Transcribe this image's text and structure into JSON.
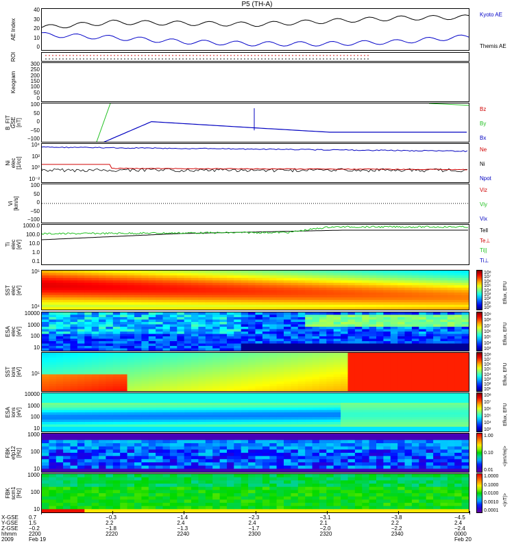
{
  "title": "P5 (TH-A)",
  "panels": {
    "ae": {
      "ylabel": "AE Index",
      "ticks": [
        "40",
        "30",
        "20",
        "10",
        "0"
      ],
      "legend": [
        "Kyoto AE",
        "Themis AE"
      ],
      "legend_colors": [
        "#0000c8",
        "#000000"
      ]
    },
    "roi": {
      "ylabel": "ROI"
    },
    "keogram": {
      "ylabel": "Keogram",
      "ticks": [
        "300",
        "250",
        "200",
        "150",
        "100",
        "50",
        "0"
      ]
    },
    "bfit": {
      "ylabel": "B_FIT\nGSE\n[nT]",
      "ticks": [
        "100",
        "50",
        "0",
        "−50",
        "−100"
      ],
      "legend": [
        "Bz",
        "By",
        "Bx"
      ],
      "legend_colors": [
        "#d00000",
        "#20c020",
        "#0000c0"
      ]
    },
    "ni": {
      "ylabel": "Ni\nelec\n[1/cc]",
      "ticks": [
        "10⁴",
        "10²",
        "10⁰",
        "10⁻²"
      ],
      "legend": [
        "Ne",
        "Ni",
        "Npot"
      ],
      "legend_colors": [
        "#d00000",
        "#000000",
        "#0000c0"
      ]
    },
    "vi": {
      "ylabel": "Vi\n[km/s]",
      "ticks": [
        "100",
        "50",
        "0",
        "−50",
        "−100"
      ],
      "legend": [
        "Viz",
        "Viy",
        "Vix"
      ],
      "legend_colors": [
        "#d00000",
        "#20c020",
        "#0000c0"
      ]
    },
    "ti": {
      "ylabel": "Ti\nelec\n[eV]",
      "ticks": [
        "1000.0",
        "100.0",
        "10.0",
        "1.0",
        "0.1"
      ],
      "legend": [
        "Tell",
        "Te⊥",
        "Ti||",
        "Ti⊥"
      ],
      "legend_colors": [
        "#000000",
        "#d00000",
        "#20c020",
        "#0000c0"
      ]
    },
    "sst_e": {
      "ylabel": "SST\nelec\n[eV]",
      "ticks": [
        "10⁵",
        "10⁴"
      ],
      "cb_label": "Eflux, EFU",
      "cb_ticks": [
        "10⁸",
        "10⁷",
        "10⁶",
        "10⁵",
        "10⁴",
        "10³",
        "10²",
        "10¹",
        "10⁰"
      ]
    },
    "esa_e": {
      "ylabel": "ESA\nelec\n[eV]",
      "ticks": [
        "10000",
        "1000",
        "100",
        "10"
      ],
      "cb_label": "Eflux, EFU",
      "cb_ticks": [
        "10⁹",
        "10⁸",
        "10⁷",
        "10⁶",
        "10⁵",
        "10⁴",
        "10³"
      ]
    },
    "sst_i": {
      "ylabel": "SST\nions\n[eV]",
      "ticks": [
        "10⁵"
      ],
      "cb_label": "Eflux, EFU",
      "cb_ticks": [
        "10⁸",
        "10⁷",
        "10⁶",
        "10⁵",
        "10⁴",
        "10³",
        "10²",
        "10¹"
      ]
    },
    "esa_i": {
      "ylabel": "ESA\nions\n[eV]",
      "ticks": [
        "10000",
        "1000",
        "100",
        "10"
      ],
      "cb_label": "Eflux, EFU",
      "cb_ticks": [
        "10⁸",
        "10⁷",
        "10⁶",
        "10⁵",
        "10⁴",
        "10³"
      ]
    },
    "fbk_e": {
      "ylabel": "FBK\nefp12\n[Hz]",
      "ticks": [
        "1000",
        "100",
        "10"
      ],
      "cb_label": "<|mV/m|>",
      "cb_ticks": [
        "1.00",
        "0.10",
        "0.01"
      ]
    },
    "fbk_b": {
      "ylabel": "FBK\nscm1\n[Hz]",
      "ticks": [
        "1000",
        "100",
        "10"
      ],
      "cb_label": "<|nT|>",
      "cb_ticks": [
        "1.0000",
        "0.1000",
        "0.0100",
        "0.0010",
        "0.0001"
      ]
    }
  },
  "xaxis": {
    "row_labels": [
      "X-GSE",
      "Y-GSE",
      "Z-GSE",
      "hhmm",
      "2009"
    ],
    "ticks": [
      {
        "lines": [
          "0.7",
          "1.5",
          "−0.2",
          "2200",
          "Feb 19"
        ]
      },
      {
        "lines": [
          "−0.3",
          "2.2",
          "−1.8",
          "2220",
          ""
        ]
      },
      {
        "lines": [
          "−1.4",
          "2.4",
          "−1.3",
          "2240",
          ""
        ]
      },
      {
        "lines": [
          "−2.3",
          "2.4",
          "−1.7",
          "2300",
          ""
        ]
      },
      {
        "lines": [
          "−3.1",
          "2.1",
          "−2.0",
          "2320",
          ""
        ]
      },
      {
        "lines": [
          "−3.8",
          "2.2",
          "−2.2",
          "2340",
          ""
        ]
      },
      {
        "lines": [
          "−4.5",
          "2.4",
          "−2.4",
          "0000",
          "Feb 20"
        ]
      }
    ]
  },
  "chart_data": {
    "type": "line",
    "title": "P5 (TH-A)",
    "x": [
      "2200",
      "2220",
      "2240",
      "2300",
      "2320",
      "2340",
      "0000"
    ],
    "series": [
      {
        "name": "Kyoto AE",
        "panel": "AE Index",
        "values": [
          22,
          27,
          26,
          25,
          28,
          31,
          32
        ]
      },
      {
        "name": "Themis AE",
        "panel": "AE Index",
        "values": [
          15,
          12,
          8,
          6,
          6,
          8,
          13
        ]
      },
      {
        "name": "Bx",
        "panel": "B_FIT GSE [nT]",
        "values": [
          -110,
          5,
          -20,
          -45,
          -50,
          -50,
          -50
        ]
      },
      {
        "name": "Tell",
        "panel": "Ti elec [eV]",
        "values": [
          60,
          70,
          150,
          180,
          300,
          320,
          330
        ]
      }
    ]
  }
}
